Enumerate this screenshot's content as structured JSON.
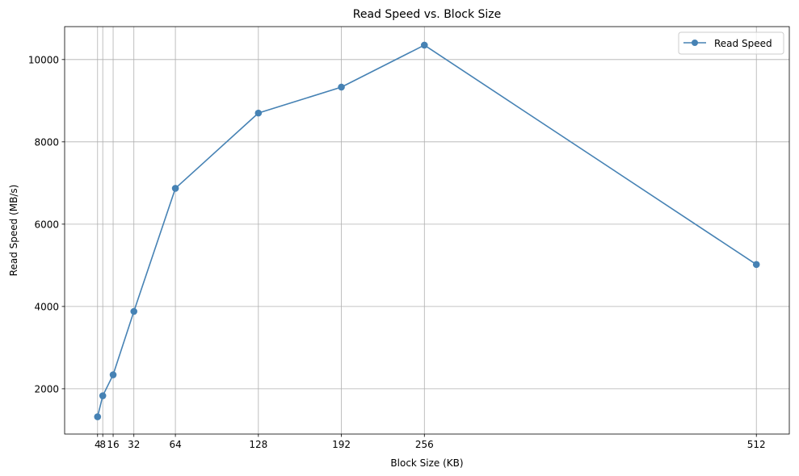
{
  "chart_data": {
    "type": "line",
    "title": "Read Speed vs. Block Size",
    "xlabel": "Block Size (KB)",
    "ylabel": "Read Speed (MB/s)",
    "x": [
      4,
      8,
      16,
      32,
      64,
      128,
      192,
      256,
      512
    ],
    "xticks": [
      4,
      8,
      16,
      32,
      64,
      128,
      192,
      256,
      512
    ],
    "xlim": [
      -21.4,
      537.4
    ],
    "yticks": [
      2000,
      4000,
      6000,
      8000,
      10000
    ],
    "ylim": [
      900,
      10800
    ],
    "grid": true,
    "legend_position": "top-right",
    "series": [
      {
        "name": "Read Speed",
        "color": "#4682b4",
        "marker": "circle",
        "values": [
          1320,
          1830,
          2340,
          3880,
          6870,
          8700,
          9330,
          10350,
          5020
        ]
      }
    ]
  }
}
